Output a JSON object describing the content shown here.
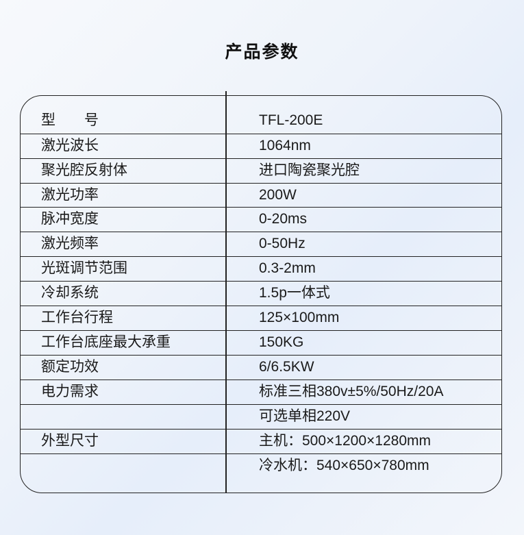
{
  "title": "产品参数",
  "rows": [
    {
      "label": "型　　号",
      "value": "TFL-200E"
    },
    {
      "label": "激光波长",
      "value": "1064nm"
    },
    {
      "label": "聚光腔反射体",
      "value": "进口陶瓷聚光腔"
    },
    {
      "label": "激光功率",
      "value": "200W"
    },
    {
      "label": "脉冲宽度",
      "value": "0-20ms"
    },
    {
      "label": "激光频率",
      "value": "0-50Hz"
    },
    {
      "label": "光斑调节范围",
      "value": "0.3-2mm"
    },
    {
      "label": "冷却系统",
      "value": "1.5p一体式"
    },
    {
      "label": "工作台行程",
      "value": "125×100mm"
    },
    {
      "label": "工作台底座最大承重",
      "value": "150KG"
    },
    {
      "label": "额定功效",
      "value": "6/6.5KW"
    },
    {
      "label": "电力需求",
      "value": "标准三相380v±5%/50Hz/20A"
    },
    {
      "label": "",
      "value": "可选单相220V"
    },
    {
      "label": "外型尺寸",
      "value": "主机：500×1200×1280mm"
    },
    {
      "label": "",
      "value": "冷水机：540×650×780mm"
    }
  ]
}
